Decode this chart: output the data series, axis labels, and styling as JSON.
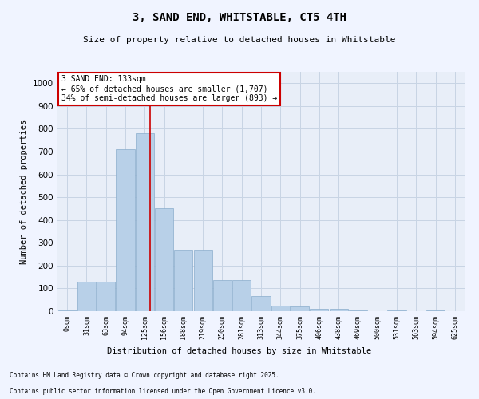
{
  "title": "3, SAND END, WHITSTABLE, CT5 4TH",
  "subtitle": "Size of property relative to detached houses in Whitstable",
  "xlabel": "Distribution of detached houses by size in Whitstable",
  "ylabel": "Number of detached properties",
  "bar_color": "#b8d0e8",
  "bar_edge_color": "#8aadcc",
  "background_color": "#e8eef8",
  "grid_color": "#c8d4e4",
  "annotation_text": "3 SAND END: 133sqm\n← 65% of detached houses are smaller (1,707)\n34% of semi-detached houses are larger (893) →",
  "vline_color": "#cc0000",
  "annotation_box_color": "#ffffff",
  "annotation_box_edge": "#cc0000",
  "categories": [
    "0sqm",
    "31sqm",
    "63sqm",
    "94sqm",
    "125sqm",
    "156sqm",
    "188sqm",
    "219sqm",
    "250sqm",
    "281sqm",
    "313sqm",
    "344sqm",
    "375sqm",
    "406sqm",
    "438sqm",
    "469sqm",
    "500sqm",
    "531sqm",
    "563sqm",
    "594sqm",
    "625sqm"
  ],
  "values": [
    5,
    130,
    130,
    710,
    780,
    450,
    270,
    270,
    135,
    135,
    65,
    25,
    20,
    10,
    10,
    5,
    0,
    5,
    0,
    5,
    0
  ],
  "ylim": [
    0,
    1050
  ],
  "yticks": [
    0,
    100,
    200,
    300,
    400,
    500,
    600,
    700,
    800,
    900,
    1000
  ],
  "footnote1": "Contains HM Land Registry data © Crown copyright and database right 2025.",
  "footnote2": "Contains public sector information licensed under the Open Government Licence v3.0."
}
